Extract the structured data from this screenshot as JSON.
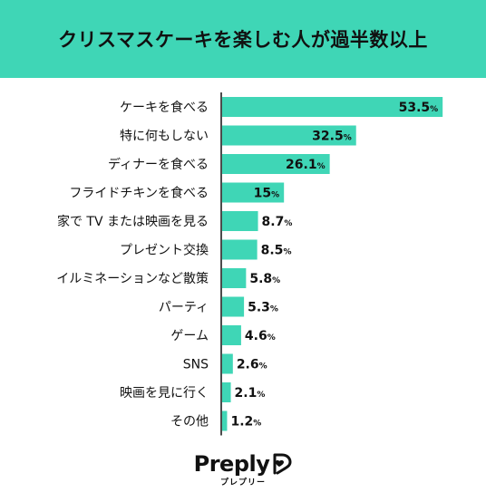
{
  "title": "クリスマスケーキを楽しむ人が過半数以上",
  "colors": {
    "header_bg": "#3fd6b6",
    "bar": "#3fd6b6",
    "text": "#111111",
    "axis": "#111111"
  },
  "chart_data": {
    "type": "bar",
    "orientation": "horizontal",
    "categories": [
      "ケーキを食べる",
      "特に何もしない",
      "ディナーを食べる",
      "フライドチキンを食べる",
      "家で TV または映画を見る",
      "プレゼント交換",
      "イルミネーションなど散策",
      "パーティ",
      "ゲーム",
      "SNS",
      "映画を見に行く",
      "その他"
    ],
    "values": [
      53.5,
      32.5,
      26.1,
      15,
      8.7,
      8.5,
      5.8,
      5.3,
      4.6,
      2.6,
      2.1,
      1.2
    ],
    "value_labels": [
      "53.5",
      "32.5",
      "26.1",
      "15",
      "8.7",
      "8.5",
      "5.8",
      "5.3",
      "4.6",
      "2.6",
      "2.1",
      "1.2"
    ],
    "unit": "%",
    "xlim": [
      0,
      55
    ],
    "grid": false
  },
  "logo": {
    "name": "Preply",
    "sub": "プレプリー",
    "icon": "preply-heart-icon"
  }
}
